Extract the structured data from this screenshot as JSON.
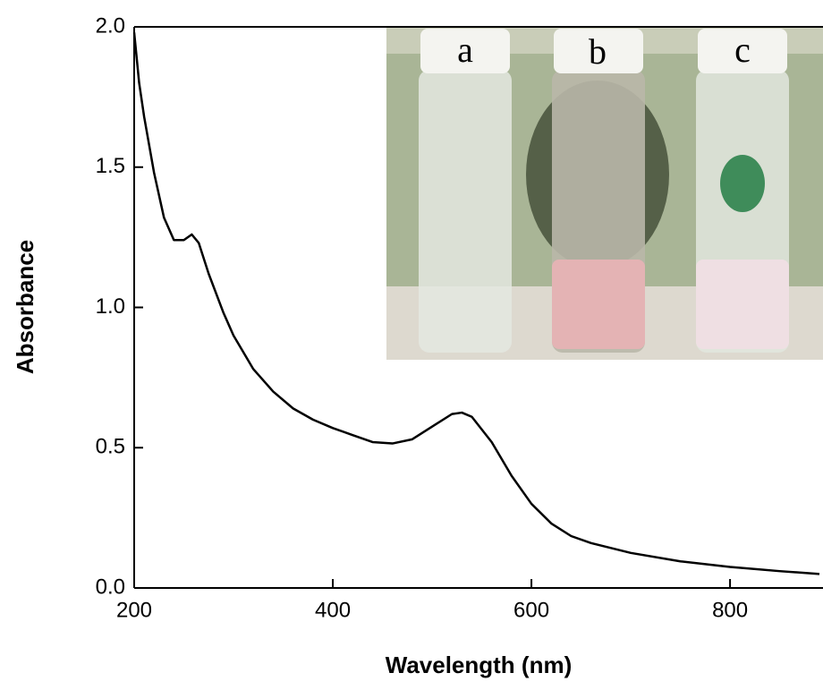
{
  "chart_data": {
    "type": "line",
    "x_label": "Wavelength (nm)",
    "y_label": "Absorbance",
    "inset_labels": [
      "a",
      "b",
      "c"
    ],
    "x": [
      200,
      205,
      210,
      220,
      230,
      240,
      250,
      258,
      265,
      275,
      290,
      300,
      320,
      340,
      360,
      380,
      400,
      420,
      440,
      460,
      480,
      500,
      520,
      530,
      540,
      560,
      580,
      600,
      620,
      640,
      660,
      700,
      750,
      800,
      850,
      890
    ],
    "series": [
      {
        "color": "#000000",
        "values": [
          1.98,
          1.8,
          1.68,
          1.48,
          1.32,
          1.24,
          1.24,
          1.26,
          1.23,
          1.12,
          0.98,
          0.9,
          0.78,
          0.7,
          0.64,
          0.6,
          0.57,
          0.545,
          0.52,
          0.515,
          0.53,
          0.575,
          0.62,
          0.625,
          0.61,
          0.52,
          0.4,
          0.3,
          0.23,
          0.185,
          0.16,
          0.125,
          0.095,
          0.075,
          0.06,
          0.05
        ]
      }
    ],
    "xlim": [
      200,
      890
    ],
    "ylim": [
      0,
      2
    ],
    "xticks": [
      200,
      400,
      600,
      800
    ],
    "yticks": [
      {
        "value": 0,
        "label": "0.0"
      },
      {
        "value": 0.5,
        "label": "0.5"
      },
      {
        "value": 1,
        "label": "1.0"
      },
      {
        "value": 1.5,
        "label": "1.5"
      },
      {
        "value": 2,
        "label": "2.0"
      }
    ]
  }
}
